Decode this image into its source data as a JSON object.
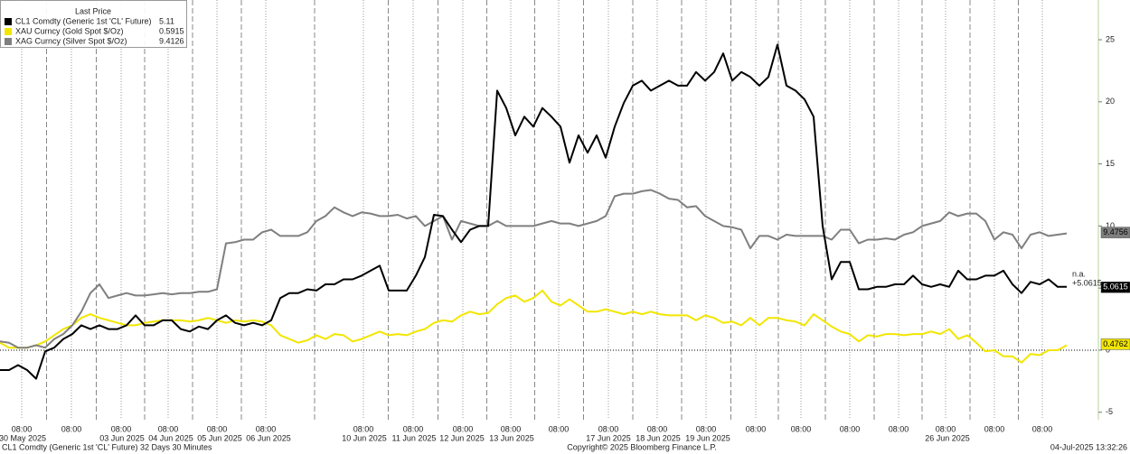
{
  "chart_data": {
    "type": "line",
    "legend_title": "Last Price",
    "ylim": [
      -5.6,
      28.2
    ],
    "yticks": [
      -5,
      0,
      5,
      10,
      15,
      20,
      25
    ],
    "xlim": [
      0,
      121.5
    ],
    "xticks": [
      {
        "value": 2.4,
        "label": "08:00"
      },
      {
        "value": 7.9,
        "label": "08:00"
      },
      {
        "value": 13.4,
        "label": "08:00"
      },
      {
        "value": 18.6,
        "label": "08:00"
      },
      {
        "value": 24.0,
        "label": "08:00"
      },
      {
        "value": 29.4,
        "label": "08:00"
      },
      {
        "value": 40.2,
        "label": "08:00"
      },
      {
        "value": 45.7,
        "label": "08:00"
      },
      {
        "value": 51.2,
        "label": "08:00"
      },
      {
        "value": 56.5,
        "label": "08:00"
      },
      {
        "value": 61.8,
        "label": "08:00"
      },
      {
        "value": 67.3,
        "label": "08:00"
      },
      {
        "value": 72.7,
        "label": "08:00"
      },
      {
        "value": 78.1,
        "label": "08:00"
      },
      {
        "value": 83.6,
        "label": "08:00"
      },
      {
        "value": 88.6,
        "label": "08:00"
      },
      {
        "value": 94.0,
        "label": "08:00"
      },
      {
        "value": 99.4,
        "label": "08:00"
      },
      {
        "value": 104.6,
        "label": "08:00"
      },
      {
        "value": 110.0,
        "label": "08:00"
      },
      {
        "value": 115.3,
        "label": "08:00"
      }
    ],
    "date_ticks": [
      {
        "value": 2.5,
        "label": "30 May 2025"
      },
      {
        "value": 13.5,
        "label": "03 Jun 2025"
      },
      {
        "value": 18.9,
        "label": "04 Jun 2025"
      },
      {
        "value": 24.3,
        "label": "05 Jun 2025"
      },
      {
        "value": 29.7,
        "label": "06 Jun 2025"
      },
      {
        "value": 40.3,
        "label": "10 Jun 2025"
      },
      {
        "value": 45.8,
        "label": "11 Jun 2025"
      },
      {
        "value": 51.1,
        "label": "12 Jun 2025"
      },
      {
        "value": 56.6,
        "label": "13 Jun 2025"
      },
      {
        "value": 67.3,
        "label": "17 Jun 2025"
      },
      {
        "value": 72.8,
        "label": "18 Jun 2025"
      },
      {
        "value": 78.3,
        "label": "19 Jun 2025"
      },
      {
        "value": 104.8,
        "label": "26 Jun 2025"
      }
    ],
    "zero_line": true,
    "series": [
      {
        "name": "CL1 Comdty (Generic 1st 'CL' Future)",
        "color": "#000000",
        "last_price": 5.11,
        "tag": 5.0615,
        "tag_text_color": "#ffffff",
        "values": [
          -1.6,
          -1.6,
          -1.2,
          -1.6,
          -2.3,
          -0.1,
          0.2,
          0.9,
          1.3,
          2.0,
          1.7,
          2.0,
          1.7,
          1.7,
          2.0,
          2.8,
          2.0,
          2.0,
          2.4,
          2.4,
          1.7,
          1.5,
          1.9,
          1.7,
          2.4,
          2.8,
          2.2,
          2.0,
          2.2,
          2.0,
          2.4,
          4.2,
          4.6,
          4.6,
          4.9,
          4.8,
          5.3,
          5.3,
          5.7,
          5.7,
          6.0,
          6.4,
          6.8,
          4.8,
          4.8,
          4.8,
          6.0,
          7.5,
          10.9,
          10.8,
          9.7,
          8.7,
          9.7,
          10.0,
          10.0,
          20.9,
          19.5,
          17.3,
          18.8,
          18.0,
          19.5,
          18.8,
          18.0,
          15.1,
          17.3,
          15.9,
          17.3,
          15.5,
          18.0,
          19.9,
          21.3,
          21.7,
          20.9,
          21.3,
          21.7,
          21.3,
          21.3,
          22.4,
          21.7,
          22.4,
          23.9,
          21.7,
          22.4,
          22.0,
          21.3,
          22.0,
          24.6,
          21.3,
          20.9,
          20.2,
          18.8,
          10.0,
          5.7,
          7.1,
          7.1,
          4.9,
          4.9,
          5.1,
          5.1,
          5.3,
          5.3,
          6.0,
          5.3,
          5.1,
          5.3,
          5.1,
          6.4,
          5.7,
          5.7,
          6.0,
          6.0,
          6.4,
          5.3,
          4.6,
          5.5,
          5.3,
          5.7,
          5.1,
          5.1
        ]
      },
      {
        "name": "XAU Curncy (Gold Spot  $/Oz)",
        "color": "#f2e600",
        "last_price": 0.5915,
        "tag": 0.4762,
        "tag_text_color": "#000000",
        "values": [
          0.6,
          0.2,
          0.2,
          0.2,
          0.4,
          0.7,
          1.2,
          1.7,
          2.0,
          2.6,
          2.9,
          2.6,
          2.4,
          2.2,
          2.0,
          2.0,
          2.2,
          2.3,
          2.4,
          2.4,
          2.4,
          2.3,
          2.4,
          2.6,
          2.4,
          2.2,
          2.4,
          2.3,
          2.4,
          2.3,
          2.0,
          1.2,
          0.9,
          0.6,
          0.8,
          1.2,
          0.9,
          1.3,
          1.2,
          0.7,
          0.9,
          1.2,
          1.5,
          1.2,
          1.3,
          1.2,
          1.5,
          1.7,
          2.2,
          2.4,
          2.3,
          2.8,
          3.1,
          2.9,
          3.0,
          3.7,
          4.2,
          4.4,
          3.9,
          4.2,
          4.8,
          3.9,
          3.6,
          4.1,
          3.6,
          3.1,
          3.1,
          3.3,
          3.1,
          2.9,
          3.1,
          2.9,
          3.1,
          2.9,
          2.8,
          2.8,
          2.8,
          2.4,
          2.8,
          2.6,
          2.2,
          2.3,
          2.0,
          2.6,
          2.0,
          2.6,
          2.6,
          2.4,
          2.3,
          2.0,
          2.9,
          2.4,
          1.9,
          1.5,
          1.3,
          0.7,
          1.2,
          1.1,
          1.3,
          1.3,
          1.2,
          1.3,
          1.3,
          1.5,
          1.3,
          1.7,
          0.9,
          1.2,
          0.6,
          -0.1,
          0.0,
          -0.5,
          -0.5,
          -1.0,
          -0.3,
          -0.4,
          0.0,
          0.0,
          0.4
        ]
      },
      {
        "name": "XAG Curncy (Silver Spot  $/Oz)",
        "color": "#7f7f7f",
        "last_price": 9.4126,
        "tag": 9.4756,
        "tag_text_color": "#000000",
        "values": [
          0.7,
          0.6,
          0.2,
          0.2,
          0.4,
          0.2,
          0.9,
          1.3,
          2.0,
          3.1,
          4.6,
          5.3,
          4.2,
          4.4,
          4.6,
          4.4,
          4.4,
          4.5,
          4.6,
          4.5,
          4.6,
          4.6,
          4.7,
          4.7,
          4.9,
          8.6,
          8.7,
          8.9,
          8.9,
          9.5,
          9.7,
          9.2,
          9.2,
          9.2,
          9.5,
          10.4,
          10.8,
          11.5,
          11.1,
          10.8,
          11.1,
          11.0,
          10.8,
          10.8,
          10.9,
          10.6,
          10.8,
          10.0,
          10.4,
          10.8,
          8.9,
          10.4,
          10.2,
          10.0,
          10.0,
          10.4,
          10.0,
          10.0,
          10.0,
          10.0,
          10.2,
          10.4,
          10.2,
          10.2,
          10.0,
          10.2,
          10.4,
          10.8,
          12.4,
          12.6,
          12.6,
          12.8,
          12.9,
          12.6,
          12.2,
          12.1,
          11.5,
          11.6,
          10.8,
          10.4,
          10.0,
          9.9,
          9.7,
          8.2,
          9.2,
          9.2,
          8.9,
          9.3,
          9.2,
          9.2,
          9.2,
          9.2,
          8.9,
          9.7,
          9.7,
          8.6,
          8.9,
          8.9,
          9.0,
          8.9,
          9.3,
          9.5,
          10.0,
          10.2,
          10.4,
          11.1,
          10.8,
          11.0,
          11.0,
          10.4,
          8.9,
          9.5,
          9.3,
          8.2,
          9.3,
          9.5,
          9.2,
          9.3,
          9.4
        ]
      }
    ],
    "annotations": [
      "n.a.",
      "+5.0615"
    ],
    "footer_left": "CL1 Comdty (Generic 1st 'CL' Future) 32 Days 30 Minutes",
    "footer_center": "Copyright© 2025 Bloomberg Finance L.P.",
    "footer_right": "04-Jul-2025 13:32:26"
  }
}
